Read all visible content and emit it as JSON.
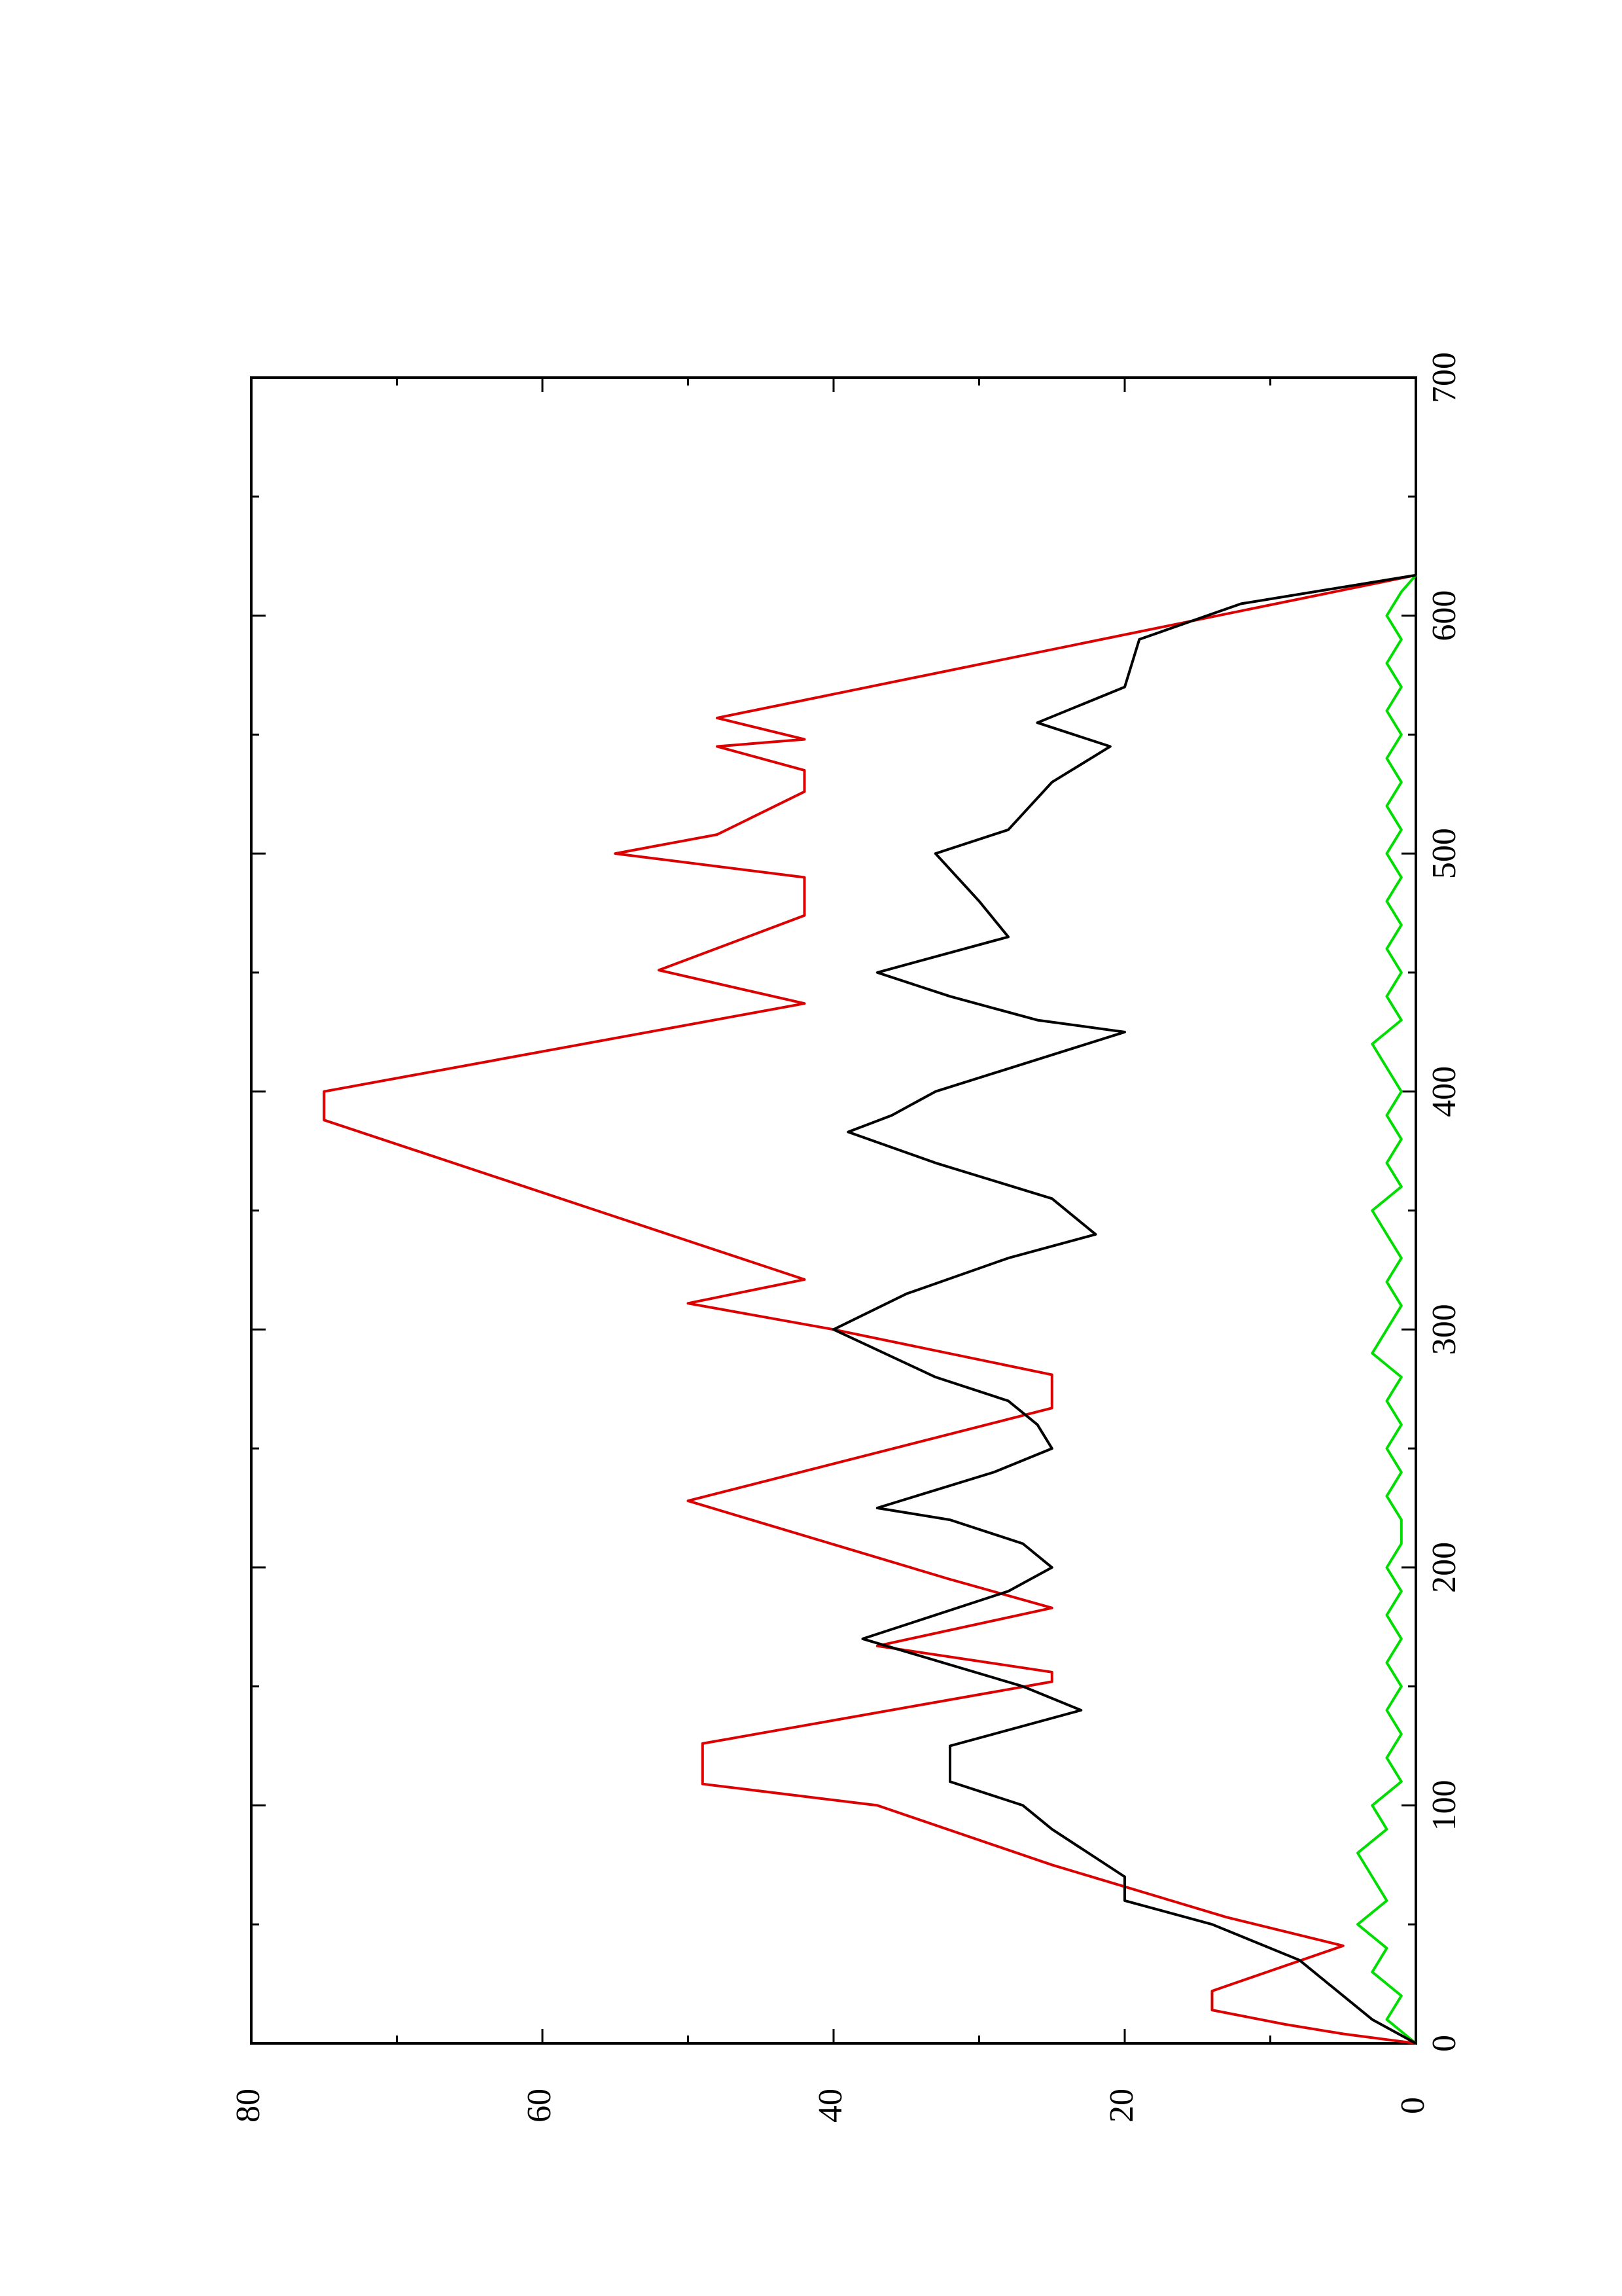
{
  "chart_data": {
    "type": "line",
    "rotated": true,
    "xlim": [
      0,
      700
    ],
    "xticks": [
      0,
      100,
      200,
      300,
      400,
      500,
      600,
      700
    ],
    "xminorticks": [
      50,
      150,
      250,
      350,
      450,
      550,
      650
    ],
    "ylim": [
      0,
      80
    ],
    "yticks": [
      0,
      20,
      40,
      60,
      80
    ],
    "yminorticks": [
      10,
      30,
      50,
      70
    ],
    "series": [
      {
        "color": "#dd0000",
        "x": [
          0,
          4,
          8,
          14,
          22,
          41,
          53,
          75,
          100,
          109,
          126,
          152,
          156,
          167,
          183,
          195,
          228,
          267,
          281,
          300,
          311,
          321,
          388,
          400,
          437,
          451,
          474,
          490,
          500,
          508,
          526,
          535,
          545,
          548,
          557,
          617
        ],
        "values": [
          0,
          5,
          9,
          14,
          14,
          5,
          13,
          25,
          37,
          49,
          49,
          25,
          25,
          37,
          25,
          32,
          50,
          25,
          25,
          40,
          50,
          42,
          75,
          75,
          42,
          52,
          42,
          42,
          55,
          48,
          42,
          42,
          48,
          42,
          48,
          0
        ]
      },
      {
        "color": "#000000",
        "x": [
          0,
          10,
          20,
          35,
          50,
          60,
          70,
          90,
          100,
          110,
          125,
          140,
          150,
          170,
          190,
          200,
          210,
          220,
          225,
          240,
          250,
          260,
          270,
          280,
          300,
          315,
          330,
          340,
          355,
          370,
          383,
          390,
          400,
          425,
          430,
          440,
          450,
          465,
          480,
          500,
          510,
          530,
          545,
          555,
          570,
          590,
          605,
          617
        ],
        "values": [
          0,
          3,
          5,
          8,
          14,
          20,
          20,
          25,
          27,
          32,
          32,
          23,
          27,
          38,
          28,
          25,
          27,
          32,
          37,
          29,
          25,
          26,
          28,
          33,
          40,
          35,
          28,
          22,
          25,
          33,
          39,
          36,
          33,
          20,
          26,
          32,
          37,
          28,
          30,
          33,
          28,
          25,
          21,
          26,
          20,
          19,
          12,
          0
        ]
      },
      {
        "color": "#00dd00",
        "x": [
          0,
          10,
          20,
          30,
          40,
          50,
          60,
          70,
          80,
          90,
          100,
          110,
          120,
          130,
          140,
          150,
          160,
          170,
          180,
          190,
          200,
          210,
          220,
          230,
          240,
          250,
          260,
          270,
          280,
          290,
          300,
          310,
          320,
          330,
          340,
          350,
          360,
          370,
          380,
          390,
          400,
          410,
          420,
          430,
          440,
          450,
          460,
          470,
          480,
          490,
          500,
          510,
          520,
          530,
          540,
          550,
          560,
          570,
          580,
          590,
          600,
          610,
          617
        ],
        "values": [
          0,
          2,
          1,
          3,
          2,
          4,
          2,
          3,
          4,
          2,
          3,
          1,
          2,
          1,
          2,
          1,
          2,
          1,
          2,
          1,
          2,
          1,
          1,
          2,
          1,
          2,
          1,
          2,
          1,
          3,
          2,
          1,
          2,
          1,
          2,
          3,
          1,
          2,
          1,
          2,
          1,
          2,
          3,
          1,
          2,
          1,
          2,
          1,
          2,
          1,
          2,
          1,
          2,
          1,
          2,
          1,
          2,
          1,
          2,
          1,
          2,
          1,
          0
        ]
      }
    ]
  }
}
